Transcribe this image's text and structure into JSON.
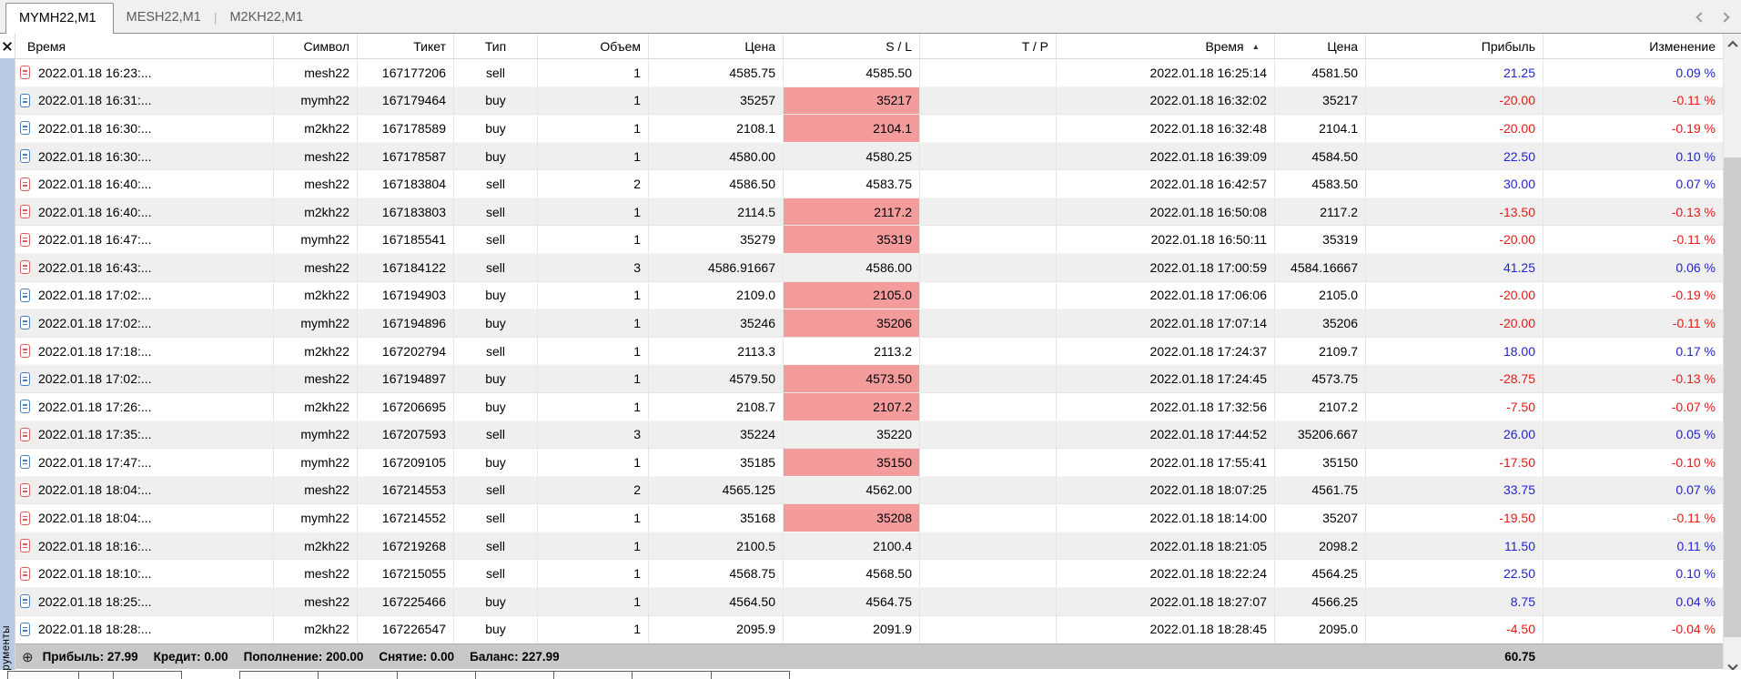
{
  "tabs": {
    "items": [
      {
        "label": "MYMH22,M1",
        "active": true
      },
      {
        "label": "MESH22,M1",
        "active": false
      },
      {
        "label": "M2KH22,M1",
        "active": false
      }
    ]
  },
  "panel": {
    "vertical_tab_label": "струменты"
  },
  "table": {
    "sort_icon": "▲",
    "columns": [
      {
        "key": "time_open",
        "label": "Время",
        "align": "left"
      },
      {
        "key": "symbol",
        "label": "Символ",
        "align": "right"
      },
      {
        "key": "ticket",
        "label": "Тикет",
        "align": "right"
      },
      {
        "key": "type",
        "label": "Тип",
        "align": "center"
      },
      {
        "key": "volume",
        "label": "Объем",
        "align": "right"
      },
      {
        "key": "price_open",
        "label": "Цена",
        "align": "right"
      },
      {
        "key": "sl",
        "label": "S / L",
        "align": "right"
      },
      {
        "key": "tp",
        "label": "T / P",
        "align": "right"
      },
      {
        "key": "time_close",
        "label": "Время",
        "align": "right",
        "sorted": "asc"
      },
      {
        "key": "price_close",
        "label": "Цена",
        "align": "right"
      },
      {
        "key": "profit",
        "label": "Прибыль",
        "align": "right"
      },
      {
        "key": "change",
        "label": "Изменение",
        "align": "right"
      }
    ],
    "rows": [
      {
        "time_open": "2022.01.18 16:23:...",
        "symbol": "mesh22",
        "ticket": "167177206",
        "type": "sell",
        "volume": "1",
        "price_open": "4585.75",
        "sl": "4585.50",
        "sl_alert": false,
        "tp": "",
        "time_close": "2022.01.18 16:25:14",
        "price_close": "4581.50",
        "profit": "21.25",
        "change": "0.09 %"
      },
      {
        "time_open": "2022.01.18 16:31:...",
        "symbol": "mymh22",
        "ticket": "167179464",
        "type": "buy",
        "volume": "1",
        "price_open": "35257",
        "sl": "35217",
        "sl_alert": true,
        "tp": "",
        "time_close": "2022.01.18 16:32:02",
        "price_close": "35217",
        "profit": "-20.00",
        "change": "-0.11 %"
      },
      {
        "time_open": "2022.01.18 16:30:...",
        "symbol": "m2kh22",
        "ticket": "167178589",
        "type": "buy",
        "volume": "1",
        "price_open": "2108.1",
        "sl": "2104.1",
        "sl_alert": true,
        "tp": "",
        "time_close": "2022.01.18 16:32:48",
        "price_close": "2104.1",
        "profit": "-20.00",
        "change": "-0.19 %"
      },
      {
        "time_open": "2022.01.18 16:30:...",
        "symbol": "mesh22",
        "ticket": "167178587",
        "type": "buy",
        "volume": "1",
        "price_open": "4580.00",
        "sl": "4580.25",
        "sl_alert": false,
        "tp": "",
        "time_close": "2022.01.18 16:39:09",
        "price_close": "4584.50",
        "profit": "22.50",
        "change": "0.10 %"
      },
      {
        "time_open": "2022.01.18 16:40:...",
        "symbol": "mesh22",
        "ticket": "167183804",
        "type": "sell",
        "volume": "2",
        "price_open": "4586.50",
        "sl": "4583.75",
        "sl_alert": false,
        "tp": "",
        "time_close": "2022.01.18 16:42:57",
        "price_close": "4583.50",
        "profit": "30.00",
        "change": "0.07 %"
      },
      {
        "time_open": "2022.01.18 16:40:...",
        "symbol": "m2kh22",
        "ticket": "167183803",
        "type": "sell",
        "volume": "1",
        "price_open": "2114.5",
        "sl": "2117.2",
        "sl_alert": true,
        "tp": "",
        "time_close": "2022.01.18 16:50:08",
        "price_close": "2117.2",
        "profit": "-13.50",
        "change": "-0.13 %"
      },
      {
        "time_open": "2022.01.18 16:47:...",
        "symbol": "mymh22",
        "ticket": "167185541",
        "type": "sell",
        "volume": "1",
        "price_open": "35279",
        "sl": "35319",
        "sl_alert": true,
        "tp": "",
        "time_close": "2022.01.18 16:50:11",
        "price_close": "35319",
        "profit": "-20.00",
        "change": "-0.11 %"
      },
      {
        "time_open": "2022.01.18 16:43:...",
        "symbol": "mesh22",
        "ticket": "167184122",
        "type": "sell",
        "volume": "3",
        "price_open": "4586.91667",
        "sl": "4586.00",
        "sl_alert": false,
        "tp": "",
        "time_close": "2022.01.18 17:00:59",
        "price_close": "4584.16667",
        "profit": "41.25",
        "change": "0.06 %"
      },
      {
        "time_open": "2022.01.18 17:02:...",
        "symbol": "m2kh22",
        "ticket": "167194903",
        "type": "buy",
        "volume": "1",
        "price_open": "2109.0",
        "sl": "2105.0",
        "sl_alert": true,
        "tp": "",
        "time_close": "2022.01.18 17:06:06",
        "price_close": "2105.0",
        "profit": "-20.00",
        "change": "-0.19 %"
      },
      {
        "time_open": "2022.01.18 17:02:...",
        "symbol": "mymh22",
        "ticket": "167194896",
        "type": "buy",
        "volume": "1",
        "price_open": "35246",
        "sl": "35206",
        "sl_alert": true,
        "tp": "",
        "time_close": "2022.01.18 17:07:14",
        "price_close": "35206",
        "profit": "-20.00",
        "change": "-0.11 %"
      },
      {
        "time_open": "2022.01.18 17:18:...",
        "symbol": "m2kh22",
        "ticket": "167202794",
        "type": "sell",
        "volume": "1",
        "price_open": "2113.3",
        "sl": "2113.2",
        "sl_alert": false,
        "tp": "",
        "time_close": "2022.01.18 17:24:37",
        "price_close": "2109.7",
        "profit": "18.00",
        "change": "0.17 %"
      },
      {
        "time_open": "2022.01.18 17:02:...",
        "symbol": "mesh22",
        "ticket": "167194897",
        "type": "buy",
        "volume": "1",
        "price_open": "4579.50",
        "sl": "4573.50",
        "sl_alert": true,
        "tp": "",
        "time_close": "2022.01.18 17:24:45",
        "price_close": "4573.75",
        "profit": "-28.75",
        "change": "-0.13 %"
      },
      {
        "time_open": "2022.01.18 17:26:...",
        "symbol": "m2kh22",
        "ticket": "167206695",
        "type": "buy",
        "volume": "1",
        "price_open": "2108.7",
        "sl": "2107.2",
        "sl_alert": true,
        "tp": "",
        "time_close": "2022.01.18 17:32:56",
        "price_close": "2107.2",
        "profit": "-7.50",
        "change": "-0.07 %"
      },
      {
        "time_open": "2022.01.18 17:35:...",
        "symbol": "mymh22",
        "ticket": "167207593",
        "type": "sell",
        "volume": "3",
        "price_open": "35224",
        "sl": "35220",
        "sl_alert": false,
        "tp": "",
        "time_close": "2022.01.18 17:44:52",
        "price_close": "35206.667",
        "profit": "26.00",
        "change": "0.05 %"
      },
      {
        "time_open": "2022.01.18 17:47:...",
        "symbol": "mymh22",
        "ticket": "167209105",
        "type": "buy",
        "volume": "1",
        "price_open": "35185",
        "sl": "35150",
        "sl_alert": true,
        "tp": "",
        "time_close": "2022.01.18 17:55:41",
        "price_close": "35150",
        "profit": "-17.50",
        "change": "-0.10 %"
      },
      {
        "time_open": "2022.01.18 18:04:...",
        "symbol": "mesh22",
        "ticket": "167214553",
        "type": "sell",
        "volume": "2",
        "price_open": "4565.125",
        "sl": "4562.00",
        "sl_alert": false,
        "tp": "",
        "time_close": "2022.01.18 18:07:25",
        "price_close": "4561.75",
        "profit": "33.75",
        "change": "0.07 %"
      },
      {
        "time_open": "2022.01.18 18:04:...",
        "symbol": "mymh22",
        "ticket": "167214552",
        "type": "sell",
        "volume": "1",
        "price_open": "35168",
        "sl": "35208",
        "sl_alert": true,
        "tp": "",
        "time_close": "2022.01.18 18:14:00",
        "price_close": "35207",
        "profit": "-19.50",
        "change": "-0.11 %"
      },
      {
        "time_open": "2022.01.18 18:16:...",
        "symbol": "m2kh22",
        "ticket": "167219268",
        "type": "sell",
        "volume": "1",
        "price_open": "2100.5",
        "sl": "2100.4",
        "sl_alert": false,
        "tp": "",
        "time_close": "2022.01.18 18:21:05",
        "price_close": "2098.2",
        "profit": "11.50",
        "change": "0.11 %"
      },
      {
        "time_open": "2022.01.18 18:10:...",
        "symbol": "mesh22",
        "ticket": "167215055",
        "type": "sell",
        "volume": "1",
        "price_open": "4568.75",
        "sl": "4568.50",
        "sl_alert": false,
        "tp": "",
        "time_close": "2022.01.18 18:22:24",
        "price_close": "4564.25",
        "profit": "22.50",
        "change": "0.10 %"
      },
      {
        "time_open": "2022.01.18 18:25:...",
        "symbol": "mesh22",
        "ticket": "167225466",
        "type": "buy",
        "volume": "1",
        "price_open": "4564.50",
        "sl": "4564.75",
        "sl_alert": false,
        "tp": "",
        "time_close": "2022.01.18 18:27:07",
        "price_close": "4566.25",
        "profit": "8.75",
        "change": "0.04 %"
      },
      {
        "time_open": "2022.01.18 18:28:...",
        "symbol": "m2kh22",
        "ticket": "167226547",
        "type": "buy",
        "volume": "1",
        "price_open": "2095.9",
        "sl": "2091.9",
        "sl_alert": false,
        "tp": "",
        "time_close": "2022.01.18 18:28:45",
        "price_close": "2095.0",
        "profit": "-4.50",
        "change": "-0.04 %"
      }
    ]
  },
  "footer": {
    "icon": "⊕",
    "summary": [
      {
        "label": "Прибыль:",
        "value": "27.99"
      },
      {
        "label": "Кредит:",
        "value": "0.00"
      },
      {
        "label": "Пополнение:",
        "value": "200.00"
      },
      {
        "label": "Снятие:",
        "value": "0.00"
      },
      {
        "label": "Баланс:",
        "value": "227.99"
      }
    ],
    "total_profit": "60.75"
  },
  "colors": {
    "sl_alert_bg": "#f49c9c",
    "profit_positive": "#2323d1",
    "profit_negative": "#e81717",
    "buy_icon": "#4d7fbe",
    "sell_icon": "#e05c5c"
  }
}
